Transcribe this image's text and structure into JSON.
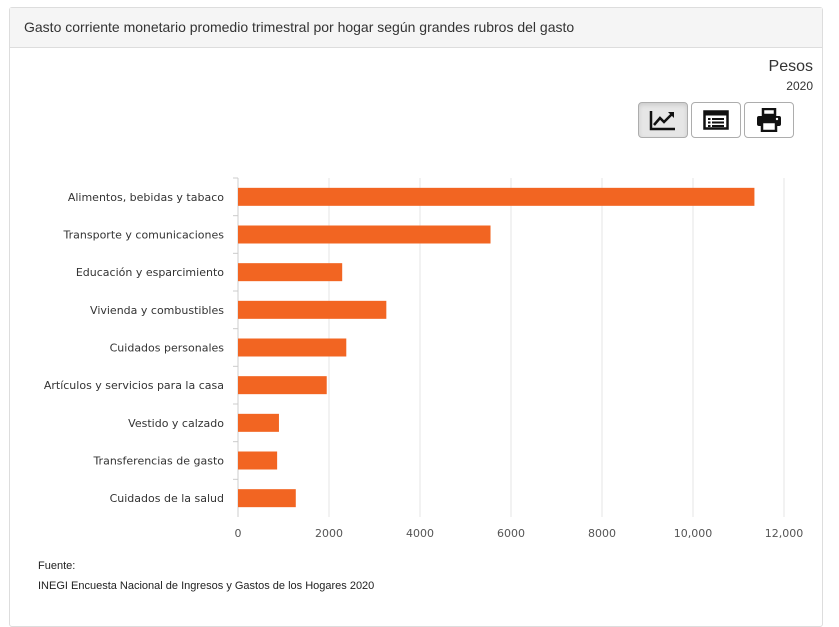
{
  "panel": {
    "title": "Gasto corriente monetario promedio trimestral por hogar según grandes rubros del gasto"
  },
  "unit": {
    "label": "Pesos",
    "year": "2020"
  },
  "toolbar": {
    "chart_icon": "line-chart-icon",
    "table_icon": "table-list-icon",
    "print_icon": "printer-icon"
  },
  "source": {
    "label": "Fuente:",
    "text": "INEGI Encuesta Nacional de Ingresos y Gastos de los Hogares 2020"
  },
  "colors": {
    "bar": "#f26522",
    "grid": "#e6e6e6",
    "axis": "#cccccc"
  },
  "chart_data": {
    "type": "bar",
    "orientation": "horizontal",
    "categories": [
      "Alimentos, bebidas y tabaco",
      "Transporte y comunicaciones",
      "Educación y esparcimiento",
      "Vivienda y combustibles",
      "Cuidados personales",
      "Artículos y servicios para la casa",
      "Vestido y calzado",
      "Transferencias de gasto",
      "Cuidados de la salud"
    ],
    "values": [
      11350,
      5550,
      2290,
      3260,
      2380,
      1950,
      900,
      860,
      1270
    ],
    "xlim": [
      0,
      12000
    ],
    "xticks": [
      0,
      2000,
      4000,
      6000,
      8000,
      10000,
      12000
    ],
    "xtick_labels": [
      "0",
      "2000",
      "4000",
      "6000",
      "8000",
      "10,000",
      "12,000"
    ],
    "grid": true,
    "legend": "none"
  }
}
